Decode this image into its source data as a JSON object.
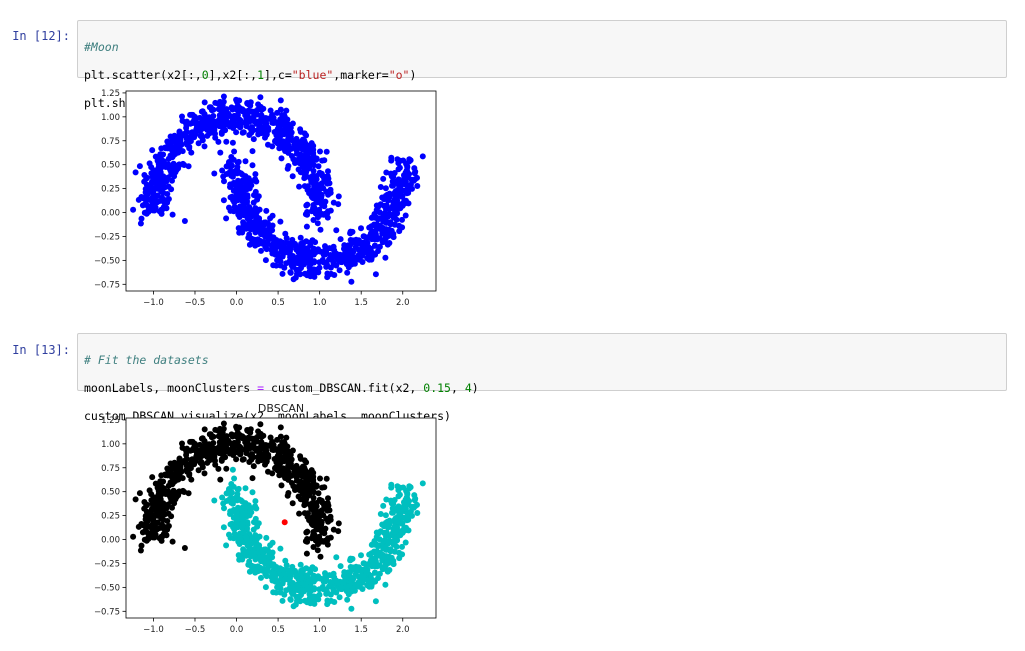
{
  "cells": [
    {
      "prompt": "In [12]:",
      "code": {
        "comment": "#Moon",
        "line2_a": "plt.scatter(x2[:,",
        "line2_n0": "0",
        "line2_b": "],x2[:,",
        "line2_n1": "1",
        "line2_c": "],c=",
        "line2_s1": "\"blue\"",
        "line2_d": ",marker=",
        "line2_s2": "\"o\"",
        "line2_e": ")",
        "line3": "plt.show()"
      }
    },
    {
      "prompt": "In [13]:",
      "code": {
        "comment": "# Fit the datasets",
        "line2_a": "moonLabels, moonClusters ",
        "line2_eq": "=",
        "line2_b": " custom_DBSCAN.fit(x2, ",
        "line2_n0": "0.15",
        "line2_c": ", ",
        "line2_n1": "4",
        "line2_d": ")",
        "line3": "custom_DBSCAN.visualize(x2, moonLabels, moonClusters)"
      }
    }
  ],
  "chart_data": [
    {
      "type": "scatter",
      "title": "",
      "xlabel": "",
      "ylabel": "",
      "xlim": [
        -1.33,
        2.4
      ],
      "ylim": [
        -0.82,
        1.27
      ],
      "xticks": [
        "−1.0",
        "−0.5",
        "0.0",
        "0.5",
        "1.0",
        "1.5",
        "2.0"
      ],
      "xtick_values": [
        -1.0,
        -0.5,
        0.0,
        0.5,
        1.0,
        1.5,
        2.0
      ],
      "yticks": [
        "−0.75",
        "−0.50",
        "−0.25",
        "0.00",
        "0.25",
        "0.50",
        "0.75",
        "1.00",
        "1.25"
      ],
      "ytick_values": [
        -0.75,
        -0.5,
        -0.25,
        0.0,
        0.25,
        0.5,
        0.75,
        1.0,
        1.25
      ],
      "series": [
        {
          "color": "#0000ff",
          "shape": "two interleaving half-moons",
          "points": "upper moon and lower moon, ~1500 points total"
        }
      ]
    },
    {
      "type": "scatter",
      "title": "DBSCAN",
      "xlabel": "",
      "ylabel": "",
      "xlim": [
        -1.33,
        2.4
      ],
      "ylim": [
        -0.82,
        1.27
      ],
      "xticks": [
        "−1.0",
        "−0.5",
        "0.0",
        "0.5",
        "1.0",
        "1.5",
        "2.0"
      ],
      "xtick_values": [
        -1.0,
        -0.5,
        0.0,
        0.5,
        1.0,
        1.5,
        2.0
      ],
      "yticks": [
        "−0.75",
        "−0.50",
        "−0.25",
        "0.00",
        "0.25",
        "0.50",
        "0.75",
        "1.00",
        "1.25"
      ],
      "ytick_values": [
        -0.75,
        -0.5,
        -0.25,
        0.0,
        0.25,
        0.5,
        0.75,
        1.0,
        1.25
      ],
      "series": [
        {
          "color": "#000000",
          "cluster": "upper moon"
        },
        {
          "color": "#00bfbf",
          "cluster": "lower moon"
        },
        {
          "color": "#ff0000",
          "cluster": "noise",
          "points": [
            [
              0.58,
              0.18
            ]
          ]
        }
      ]
    }
  ]
}
